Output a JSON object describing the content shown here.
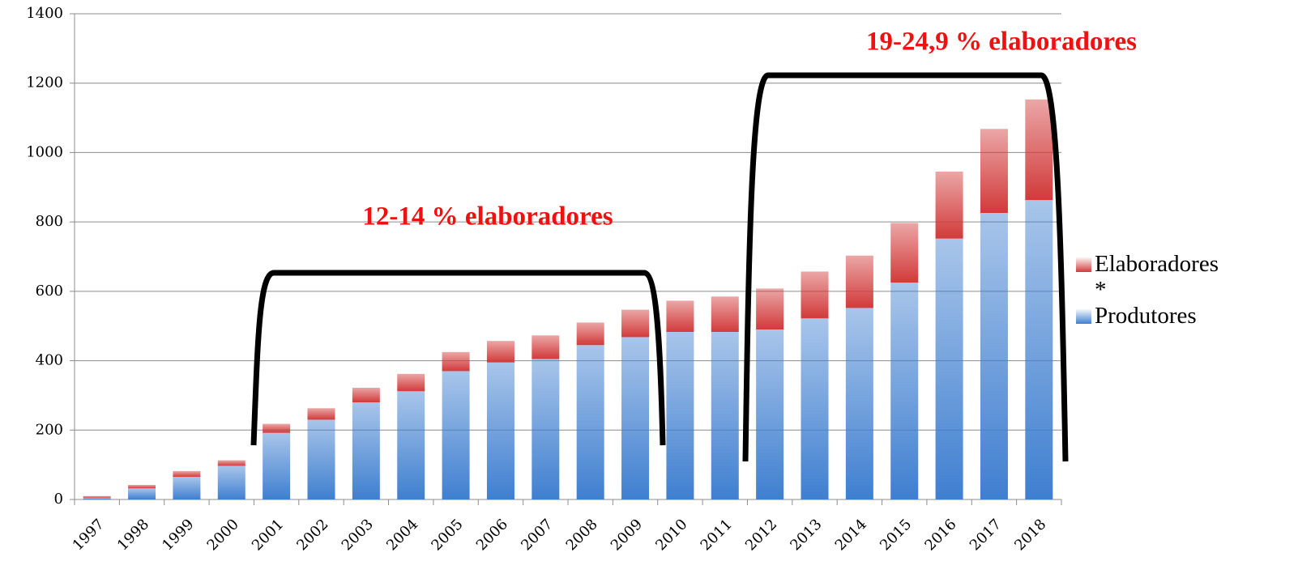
{
  "chart_data": {
    "type": "stacked_bar",
    "categories": [
      "1997",
      "1998",
      "1999",
      "2000",
      "2001",
      "2002",
      "2003",
      "2004",
      "2005",
      "2006",
      "2007",
      "2008",
      "2009",
      "2010",
      "2011",
      "2012",
      "2013",
      "2014",
      "2015",
      "2016",
      "2017",
      "2018"
    ],
    "series": [
      {
        "name": "Produtores",
        "color": "#3f7fd0",
        "values": [
          5,
          32,
          65,
          97,
          192,
          230,
          280,
          312,
          370,
          395,
          405,
          445,
          468,
          483,
          483,
          490,
          522,
          552,
          625,
          752,
          826,
          863
        ]
      },
      {
        "name": "Elaboradores *",
        "color": "#d23a3a",
        "values": [
          5,
          10,
          17,
          16,
          26,
          33,
          42,
          50,
          55,
          62,
          68,
          65,
          79,
          90,
          102,
          118,
          135,
          151,
          172,
          193,
          242,
          290
        ]
      }
    ],
    "ylim": [
      0,
      1400
    ],
    "yticks": [
      0,
      200,
      400,
      600,
      800,
      1000,
      1200,
      1400
    ],
    "grid": true,
    "legend": "right",
    "annotations": [
      "12-14 % elaboradores",
      "19-24,9 % elaboradores"
    ]
  }
}
